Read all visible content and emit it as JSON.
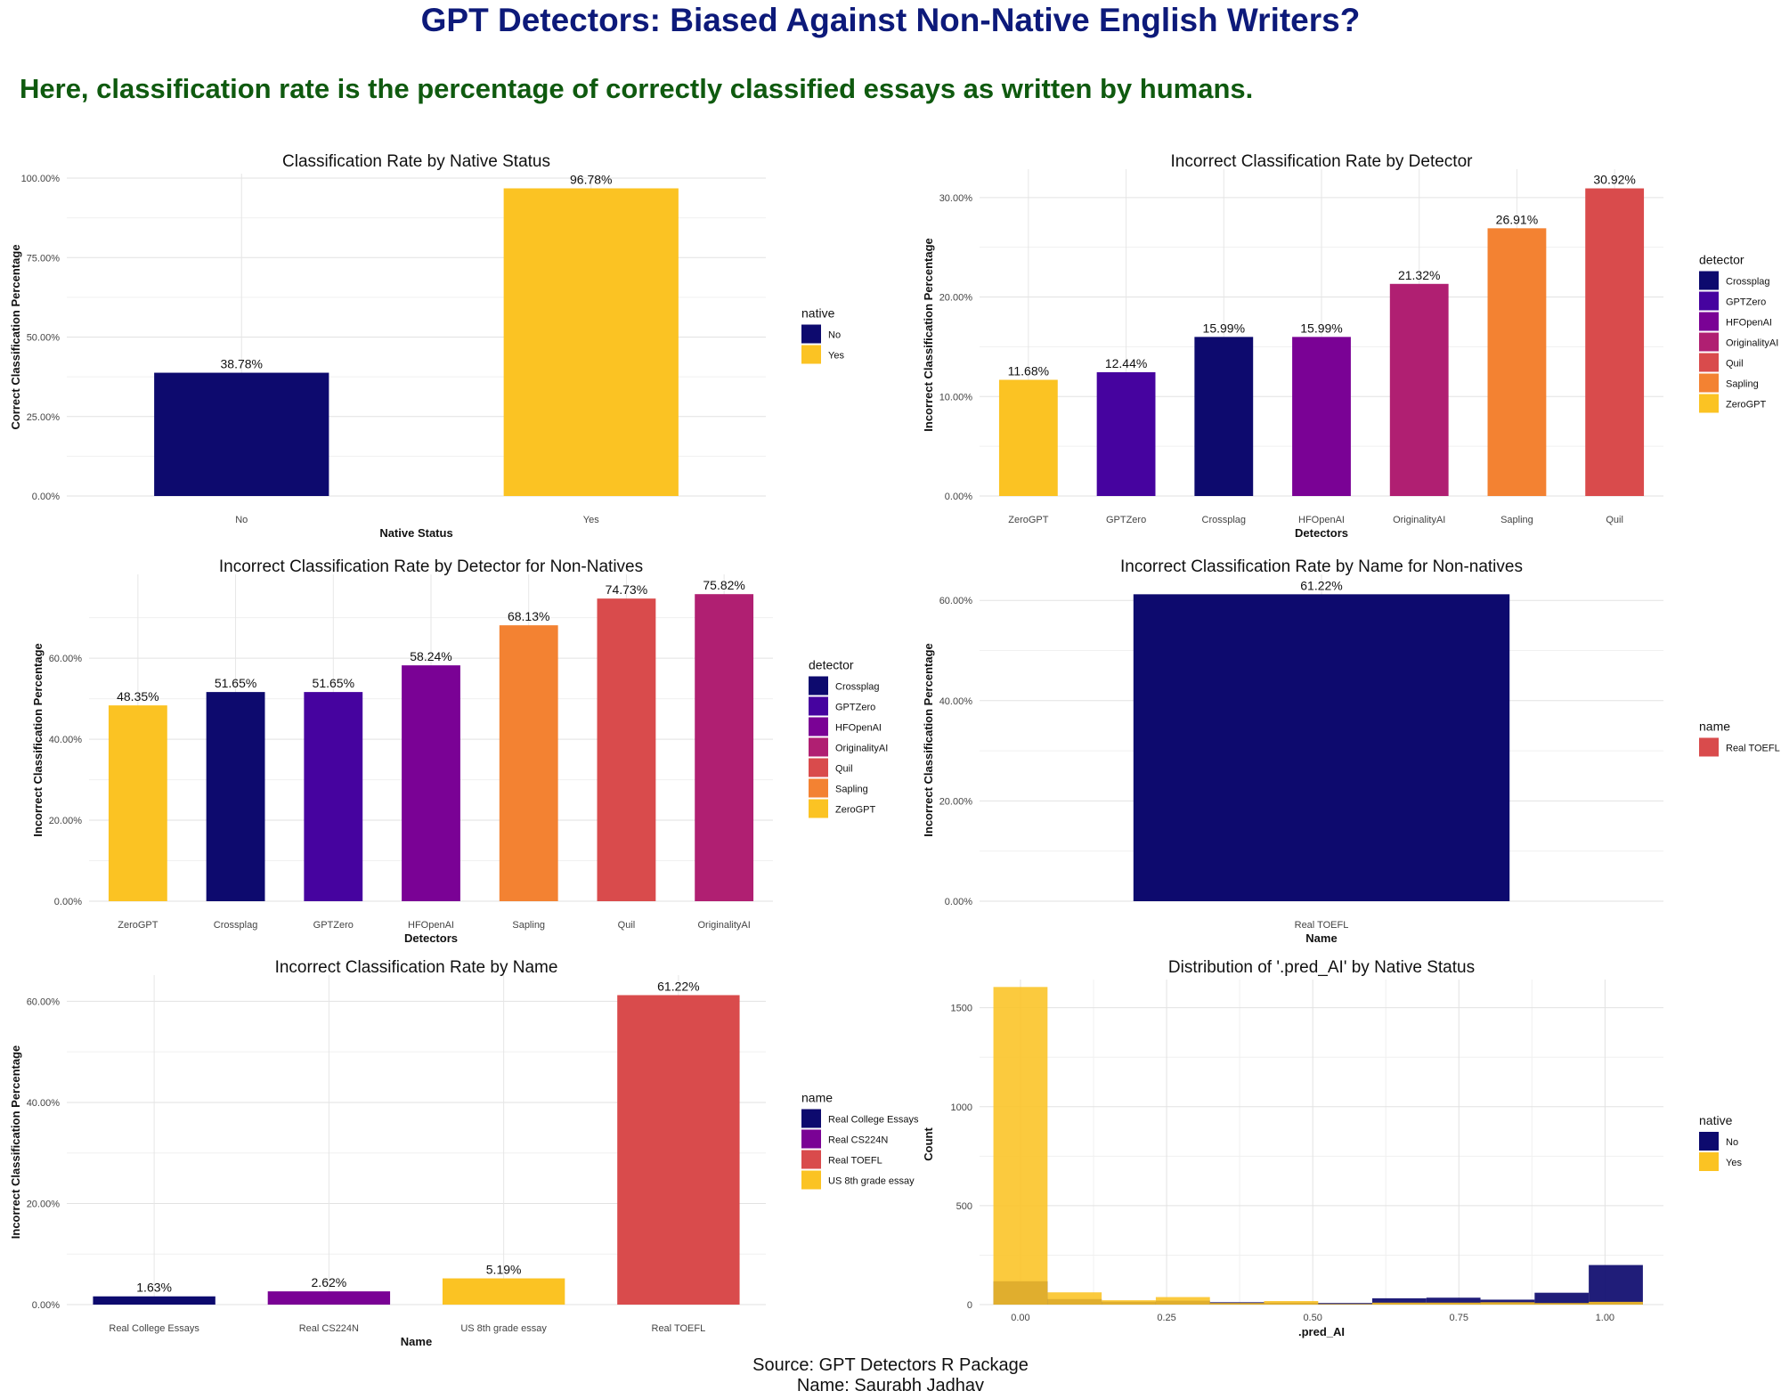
{
  "header": {
    "title": "GPT Detectors: Biased Against Non-Native English Writers?",
    "subtitle": "Here, classification rate is the percentage of correctly classified essays as written by humans."
  },
  "footer": {
    "source": "Source: GPT Detectors R Package",
    "author": "Name: Saurabh Jadhav"
  },
  "colors": {
    "Crossplag": "#0d0a6e",
    "GPTZero": "#46039f",
    "HFOpenAI": "#7a0295",
    "OriginalityAI": "#b01f72",
    "Quil": "#d94b4c",
    "Sapling": "#f38232",
    "ZeroGPT": "#fbc323",
    "No": "#0d0a6e",
    "Yes": "#fbc323",
    "Real College Essays": "#0d0a6e",
    "Real CS224N": "#7a0295",
    "Real TOEFL": "#d94b4c",
    "US 8th grade essay": "#fbc323"
  },
  "chart_data": [
    {
      "type": "bar",
      "title": "Classification Rate by Native Status",
      "xlabel": "Native Status",
      "ylabel": "Correct Classification Percentage",
      "categories": [
        "No",
        "Yes"
      ],
      "values": [
        38.78,
        96.78
      ],
      "labels": [
        "38.78%",
        "96.78%"
      ],
      "fill": [
        "No",
        "Yes"
      ],
      "ylim": [
        0,
        100
      ],
      "ticks": [
        0,
        25,
        50,
        75,
        100
      ],
      "tick_labels": [
        "0.00%",
        "25.00%",
        "50.00%",
        "75.00%",
        "100.00%"
      ],
      "legend": {
        "title": "native",
        "items": [
          "No",
          "Yes"
        ],
        "position": "right"
      }
    },
    {
      "type": "bar",
      "title": "Incorrect Classification Rate by Detector",
      "xlabel": "Detectors",
      "ylabel": "Incorrect Classification Percentage",
      "categories": [
        "ZeroGPT",
        "GPTZero",
        "Crossplag",
        "HFOpenAI",
        "OriginalityAI",
        "Sapling",
        "Quil"
      ],
      "values": [
        11.68,
        12.44,
        15.99,
        15.99,
        21.32,
        26.91,
        30.92
      ],
      "labels": [
        "11.68%",
        "12.44%",
        "15.99%",
        "15.99%",
        "21.32%",
        "26.91%",
        "30.92%"
      ],
      "fill": [
        "ZeroGPT",
        "GPTZero",
        "Crossplag",
        "HFOpenAI",
        "OriginalityAI",
        "Sapling",
        "Quil"
      ],
      "ylim": [
        0,
        32.4
      ],
      "ticks": [
        0,
        10,
        20,
        30
      ],
      "tick_labels": [
        "0.00%",
        "10.00%",
        "20.00%",
        "30.00%"
      ],
      "legend": {
        "title": "detector",
        "items": [
          "Crossplag",
          "GPTZero",
          "HFOpenAI",
          "OriginalityAI",
          "Quil",
          "Sapling",
          "ZeroGPT"
        ],
        "position": "right"
      }
    },
    {
      "type": "bar",
      "title": "Incorrect Classification Rate by Detector for Non-Natives",
      "xlabel": "Detectors",
      "ylabel": "Incorrect Classification Percentage",
      "categories": [
        "ZeroGPT",
        "Crossplag",
        "GPTZero",
        "HFOpenAI",
        "Sapling",
        "Quil",
        "OriginalityAI"
      ],
      "values": [
        48.35,
        51.65,
        51.65,
        58.24,
        68.13,
        74.73,
        75.82
      ],
      "labels": [
        "48.35%",
        "51.65%",
        "51.65%",
        "58.24%",
        "68.13%",
        "74.73%",
        "75.82%"
      ],
      "fill": [
        "ZeroGPT",
        "Crossplag",
        "GPTZero",
        "HFOpenAI",
        "Sapling",
        "Quil",
        "OriginalityAI"
      ],
      "ylim": [
        0,
        79.6
      ],
      "ticks": [
        0,
        20,
        40,
        60
      ],
      "tick_labels": [
        "0.00%",
        "20.00%",
        "40.00%",
        "60.00%"
      ],
      "legend": {
        "title": "detector",
        "items": [
          "Crossplag",
          "GPTZero",
          "HFOpenAI",
          "OriginalityAI",
          "Quil",
          "Sapling",
          "ZeroGPT"
        ],
        "position": "right"
      }
    },
    {
      "type": "bar",
      "title": "Incorrect Classification Rate by Name for Non-natives",
      "xlabel": "Name",
      "ylabel": "Incorrect Classification Percentage",
      "categories": [
        "Real TOEFL"
      ],
      "values": [
        61.22
      ],
      "labels": [
        "61.22%"
      ],
      "fill": [
        "Crossplag"
      ],
      "ylim": [
        0,
        64.3
      ],
      "ticks": [
        0,
        20,
        40,
        60
      ],
      "tick_labels": [
        "0.00%",
        "20.00%",
        "40.00%",
        "60.00%"
      ],
      "legend": {
        "title": "name",
        "items": [
          "Real TOEFL"
        ],
        "position": "right"
      }
    },
    {
      "type": "bar",
      "title": "Incorrect Classification Rate by Name",
      "xlabel": "Name",
      "ylabel": "Incorrect Classification Percentage",
      "categories": [
        "Real College Essays",
        "Real CS224N",
        "US 8th grade essay",
        "Real TOEFL"
      ],
      "values": [
        1.63,
        2.62,
        5.19,
        61.22
      ],
      "labels": [
        "1.63%",
        "2.62%",
        "5.19%",
        "61.22%"
      ],
      "fill": [
        "Real College Essays",
        "Real CS224N",
        "US 8th grade essay",
        "Real TOEFL"
      ],
      "ylim": [
        0,
        64.3
      ],
      "ticks": [
        0,
        20,
        40,
        60
      ],
      "tick_labels": [
        "0.00%",
        "20.00%",
        "40.00%",
        "60.00%"
      ],
      "legend": {
        "title": "name",
        "items": [
          "Real College Essays",
          "Real CS224N",
          "Real TOEFL",
          "US 8th grade essay"
        ],
        "position": "right"
      }
    },
    {
      "type": "histogram",
      "title": "Distribution of '.pred_AI' by Native Status",
      "xlabel": ".pred_AI",
      "ylabel": "Count",
      "xlim": [
        -0.07,
        1.1
      ],
      "ylim": [
        0,
        1620
      ],
      "xticks": [
        0,
        0.25,
        0.5,
        0.75,
        1.0
      ],
      "xtick_labels": [
        "0.00",
        "0.25",
        "0.50",
        "0.75",
        "1.00"
      ],
      "yticks": [
        0,
        500,
        1000,
        1500
      ],
      "ytick_labels": [
        "0",
        "500",
        "1000",
        "1500"
      ],
      "bin_centers": [
        0.0,
        0.0926,
        0.1852,
        0.2778,
        0.3704,
        0.463,
        0.5556,
        0.6481,
        0.7407,
        0.8333,
        0.9259,
        1.0185
      ],
      "bin_width": 0.0926,
      "series": [
        {
          "name": "No",
          "values": [
            118,
            28,
            15,
            20,
            12,
            10,
            8,
            32,
            35,
            25,
            60,
            200
          ]
        },
        {
          "name": "Yes",
          "values": [
            1605,
            62,
            22,
            38,
            8,
            18,
            3,
            10,
            10,
            12,
            8,
            14
          ]
        }
      ],
      "alpha": 0.9,
      "legend": {
        "title": "native",
        "items": [
          "No",
          "Yes"
        ],
        "position": "right"
      }
    }
  ]
}
